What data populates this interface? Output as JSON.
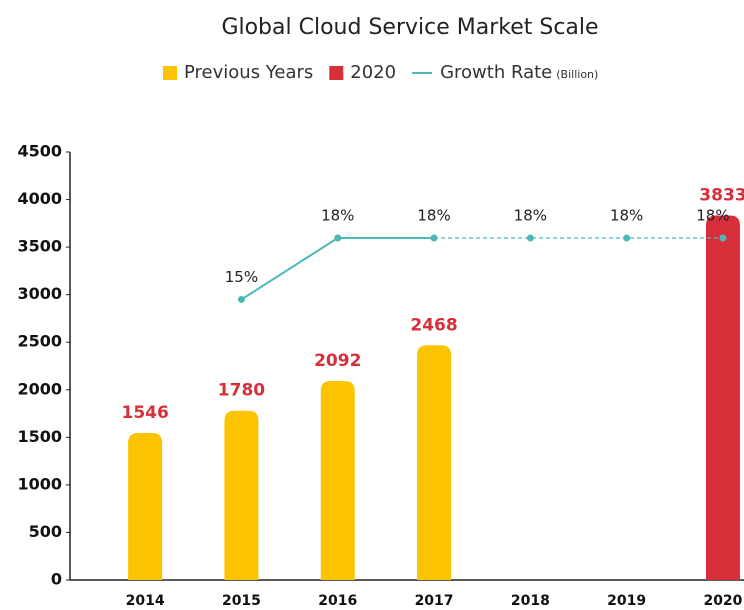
{
  "chart_data": {
    "type": "bar",
    "title": "Global Cloud Service Market Scale",
    "unit": "(Billion)",
    "categories": [
      "2014",
      "2015",
      "2016",
      "2017",
      "2018",
      "2019",
      "2020"
    ],
    "series": [
      {
        "name": "Previous Years",
        "color": "#fcc400",
        "values": [
          1546,
          1780,
          2092,
          2468,
          null,
          null,
          null
        ]
      },
      {
        "name": "2020",
        "color": "#d62f3a",
        "values": [
          null,
          null,
          null,
          null,
          null,
          null,
          3833
        ]
      },
      {
        "name": "Growth Rate",
        "color": "#4cb8b8",
        "axis": "y2",
        "type": "line",
        "dash_from": 3,
        "values": [
          null,
          15,
          18,
          18,
          18,
          18,
          18
        ],
        "value_labels": [
          null,
          "15%",
          "18%",
          "18%",
          "18%",
          "18%",
          "18%"
        ]
      }
    ],
    "value_label_color": "#d62f3a",
    "ylim": [
      0,
      4500
    ],
    "yticks": [
      0,
      500,
      1000,
      1500,
      2000,
      2500,
      3000,
      3500,
      4000,
      4500
    ],
    "y2lim": [
      1.3,
      22.2
    ],
    "grid": false
  }
}
